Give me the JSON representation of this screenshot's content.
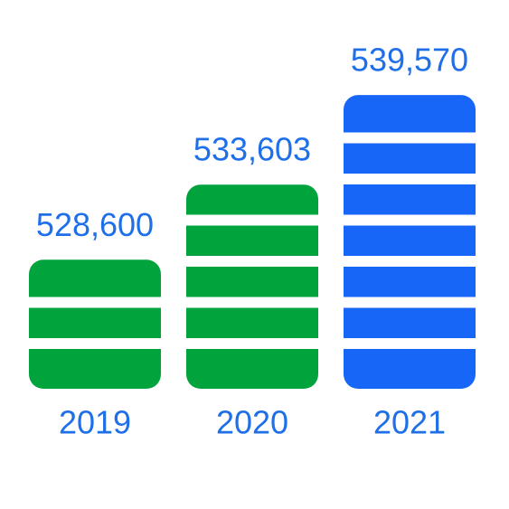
{
  "chart_data": {
    "type": "bar",
    "categories": [
      "2019",
      "2020",
      "2021"
    ],
    "values": [
      528600,
      533603,
      539570
    ],
    "value_labels": [
      "528,600",
      "533,603",
      "539,570"
    ],
    "colors": [
      "#00a33c",
      "#00a33c",
      "#1766f7"
    ],
    "ylim": [
      520000,
      540000
    ]
  }
}
